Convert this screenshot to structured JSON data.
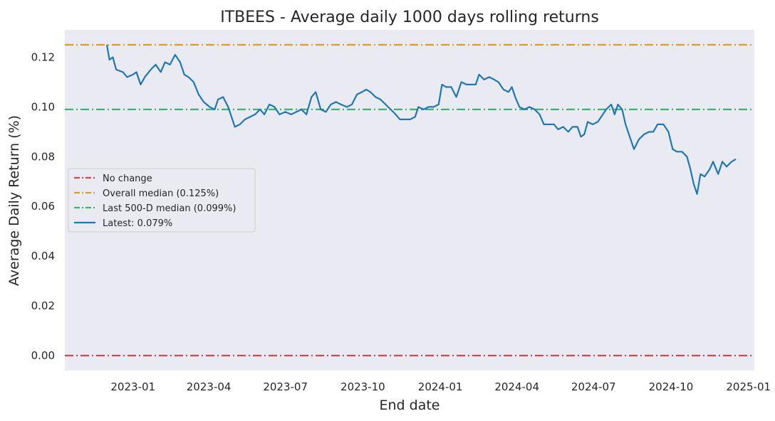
{
  "chart_data": {
    "type": "line",
    "title": "ITBEES - Average daily 1000 days rolling returns",
    "xlabel": "End date",
    "ylabel": "Average Daily Return (%)",
    "xlim": [
      "2022-10-12",
      "2025-01-08"
    ],
    "ylim": [
      -0.006,
      0.131
    ],
    "x_ticks": [
      "2023-01",
      "2023-04",
      "2023-07",
      "2023-10",
      "2024-01",
      "2024-04",
      "2024-07",
      "2024-10",
      "2025-01"
    ],
    "y_ticks": [
      "0.00",
      "0.02",
      "0.04",
      "0.06",
      "0.08",
      "0.10",
      "0.12"
    ],
    "grid": false,
    "background": "#eaeaf2",
    "legend_position": "center-left",
    "reference_lines": [
      {
        "name": "No change",
        "value": 0.0,
        "color": "#c44e52",
        "style": "dashdot"
      },
      {
        "name": "Overall median (0.125%)",
        "value": 0.125,
        "color": "#dd9d2a",
        "style": "dashdot"
      },
      {
        "name": "Last 500-D median (0.099%)",
        "value": 0.099,
        "color": "#3cb371",
        "style": "dashdot"
      }
    ],
    "series": [
      {
        "name": "Latest: 0.079%",
        "color": "#1f77b4",
        "points": [
          [
            "2022-12-01",
            0.125
          ],
          [
            "2022-12-04",
            0.119
          ],
          [
            "2022-12-08",
            0.12
          ],
          [
            "2022-12-12",
            0.115
          ],
          [
            "2022-12-20",
            0.114
          ],
          [
            "2022-12-25",
            0.112
          ],
          [
            "2023-01-01",
            0.113
          ],
          [
            "2023-01-05",
            0.114
          ],
          [
            "2023-01-10",
            0.109
          ],
          [
            "2023-01-15",
            0.112
          ],
          [
            "2023-01-22",
            0.115
          ],
          [
            "2023-01-28",
            0.117
          ],
          [
            "2023-02-03",
            0.114
          ],
          [
            "2023-02-08",
            0.118
          ],
          [
            "2023-02-14",
            0.117
          ],
          [
            "2023-02-20",
            0.121
          ],
          [
            "2023-02-26",
            0.118
          ],
          [
            "2023-03-03",
            0.113
          ],
          [
            "2023-03-08",
            0.112
          ],
          [
            "2023-03-14",
            0.11
          ],
          [
            "2023-03-20",
            0.105
          ],
          [
            "2023-03-26",
            0.102
          ],
          [
            "2023-04-02",
            0.1
          ],
          [
            "2023-04-08",
            0.099
          ],
          [
            "2023-04-12",
            0.103
          ],
          [
            "2023-04-18",
            0.104
          ],
          [
            "2023-04-24",
            0.1
          ],
          [
            "2023-04-28",
            0.096
          ],
          [
            "2023-05-02",
            0.092
          ],
          [
            "2023-05-08",
            0.093
          ],
          [
            "2023-05-14",
            0.095
          ],
          [
            "2023-05-20",
            0.096
          ],
          [
            "2023-05-26",
            0.097
          ],
          [
            "2023-06-01",
            0.099
          ],
          [
            "2023-06-06",
            0.097
          ],
          [
            "2023-06-12",
            0.101
          ],
          [
            "2023-06-18",
            0.1
          ],
          [
            "2023-06-24",
            0.097
          ],
          [
            "2023-07-01",
            0.098
          ],
          [
            "2023-07-08",
            0.097
          ],
          [
            "2023-07-14",
            0.098
          ],
          [
            "2023-07-20",
            0.099
          ],
          [
            "2023-07-26",
            0.097
          ],
          [
            "2023-08-01",
            0.104
          ],
          [
            "2023-08-06",
            0.106
          ],
          [
            "2023-08-12",
            0.099
          ],
          [
            "2023-08-18",
            0.098
          ],
          [
            "2023-08-24",
            0.101
          ],
          [
            "2023-08-30",
            0.102
          ],
          [
            "2023-09-05",
            0.101
          ],
          [
            "2023-09-12",
            0.1
          ],
          [
            "2023-09-18",
            0.101
          ],
          [
            "2023-09-24",
            0.105
          ],
          [
            "2023-09-30",
            0.106
          ],
          [
            "2023-10-05",
            0.107
          ],
          [
            "2023-10-10",
            0.106
          ],
          [
            "2023-10-16",
            0.104
          ],
          [
            "2023-10-22",
            0.103
          ],
          [
            "2023-10-28",
            0.101
          ],
          [
            "2023-11-03",
            0.099
          ],
          [
            "2023-11-09",
            0.097
          ],
          [
            "2023-11-14",
            0.095
          ],
          [
            "2023-11-20",
            0.095
          ],
          [
            "2023-11-26",
            0.095
          ],
          [
            "2023-12-02",
            0.096
          ],
          [
            "2023-12-06",
            0.1
          ],
          [
            "2023-12-12",
            0.099
          ],
          [
            "2023-12-18",
            0.1
          ],
          [
            "2023-12-24",
            0.1
          ],
          [
            "2023-12-30",
            0.101
          ],
          [
            "2024-01-03",
            0.109
          ],
          [
            "2024-01-08",
            0.108
          ],
          [
            "2024-01-14",
            0.108
          ],
          [
            "2024-01-20",
            0.104
          ],
          [
            "2024-01-26",
            0.11
          ],
          [
            "2024-02-01",
            0.109
          ],
          [
            "2024-02-06",
            0.109
          ],
          [
            "2024-02-12",
            0.109
          ],
          [
            "2024-02-16",
            0.113
          ],
          [
            "2024-02-22",
            0.111
          ],
          [
            "2024-02-28",
            0.112
          ],
          [
            "2024-03-05",
            0.111
          ],
          [
            "2024-03-10",
            0.11
          ],
          [
            "2024-03-16",
            0.107
          ],
          [
            "2024-03-22",
            0.106
          ],
          [
            "2024-03-26",
            0.108
          ],
          [
            "2024-03-30",
            0.104
          ],
          [
            "2024-04-04",
            0.1
          ],
          [
            "2024-04-10",
            0.099
          ],
          [
            "2024-04-16",
            0.1
          ],
          [
            "2024-04-22",
            0.099
          ],
          [
            "2024-04-28",
            0.097
          ],
          [
            "2024-05-03",
            0.093
          ],
          [
            "2024-05-09",
            0.093
          ],
          [
            "2024-05-15",
            0.093
          ],
          [
            "2024-05-20",
            0.091
          ],
          [
            "2024-05-26",
            0.092
          ],
          [
            "2024-06-01",
            0.09
          ],
          [
            "2024-06-06",
            0.092
          ],
          [
            "2024-06-12",
            0.092
          ],
          [
            "2024-06-16",
            0.088
          ],
          [
            "2024-06-20",
            0.089
          ],
          [
            "2024-06-24",
            0.094
          ],
          [
            "2024-06-30",
            0.093
          ],
          [
            "2024-07-06",
            0.094
          ],
          [
            "2024-07-12",
            0.097
          ],
          [
            "2024-07-16",
            0.099
          ],
          [
            "2024-07-22",
            0.101
          ],
          [
            "2024-07-26",
            0.097
          ],
          [
            "2024-07-30",
            0.101
          ],
          [
            "2024-08-04",
            0.099
          ],
          [
            "2024-08-08",
            0.093
          ],
          [
            "2024-08-14",
            0.087
          ],
          [
            "2024-08-18",
            0.083
          ],
          [
            "2024-08-24",
            0.087
          ],
          [
            "2024-08-30",
            0.089
          ],
          [
            "2024-09-05",
            0.09
          ],
          [
            "2024-09-10",
            0.09
          ],
          [
            "2024-09-15",
            0.093
          ],
          [
            "2024-09-22",
            0.093
          ],
          [
            "2024-09-28",
            0.09
          ],
          [
            "2024-10-03",
            0.083
          ],
          [
            "2024-10-08",
            0.082
          ],
          [
            "2024-10-14",
            0.082
          ],
          [
            "2024-10-20",
            0.08
          ],
          [
            "2024-10-24",
            0.075
          ],
          [
            "2024-10-28",
            0.069
          ],
          [
            "2024-11-01",
            0.065
          ],
          [
            "2024-11-05",
            0.073
          ],
          [
            "2024-11-10",
            0.072
          ],
          [
            "2024-11-16",
            0.075
          ],
          [
            "2024-11-20",
            0.078
          ],
          [
            "2024-11-26",
            0.073
          ],
          [
            "2024-12-01",
            0.078
          ],
          [
            "2024-12-06",
            0.076
          ],
          [
            "2024-12-12",
            0.078
          ],
          [
            "2024-12-17",
            0.079
          ]
        ]
      }
    ]
  }
}
